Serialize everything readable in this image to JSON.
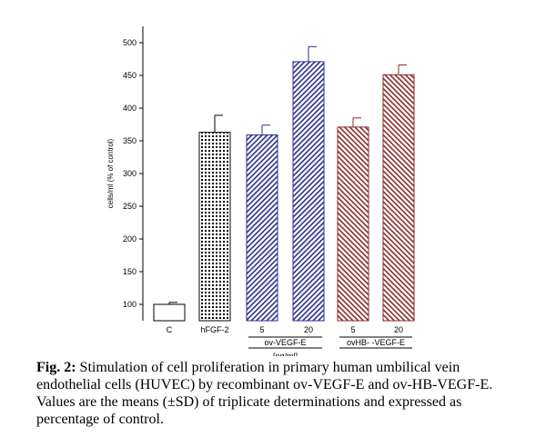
{
  "chart_data": {
    "type": "bar",
    "ylabel": "cells/ml (% of control)",
    "ylim": [
      75,
      525
    ],
    "yticks": [
      100,
      150,
      200,
      250,
      300,
      350,
      400,
      450,
      500
    ],
    "categories": [
      "C",
      "hFGF-2",
      "5",
      "20",
      "5",
      "20"
    ],
    "values": [
      100,
      363,
      359,
      471,
      371,
      451
    ],
    "errors": [
      3,
      26,
      15,
      23,
      14,
      15
    ],
    "fills": [
      "plain",
      "dots",
      "hatch-blue",
      "hatch-blue",
      "hatch-red",
      "hatch-red"
    ],
    "groups": [
      {
        "label": "ov-VEGF-E",
        "sublabel": "[ng/ml]"
      },
      {
        "label": "ovHB- -VEGF-E",
        "sublabel": ""
      }
    ],
    "colors": {
      "blue": "#2b2f8c",
      "red": "#8b2a2a",
      "axis": "#000000"
    }
  },
  "caption": {
    "label": "Fig. 2:",
    "text": " Stimulation of cell proliferation in primary human umbilical vein endothelial cells (HUVEC) by recombinant ov-VEGF-E and ov-HB-VEGF-E. Values are the means (±SD) of triplicate determinations and expressed as percentage of control."
  }
}
